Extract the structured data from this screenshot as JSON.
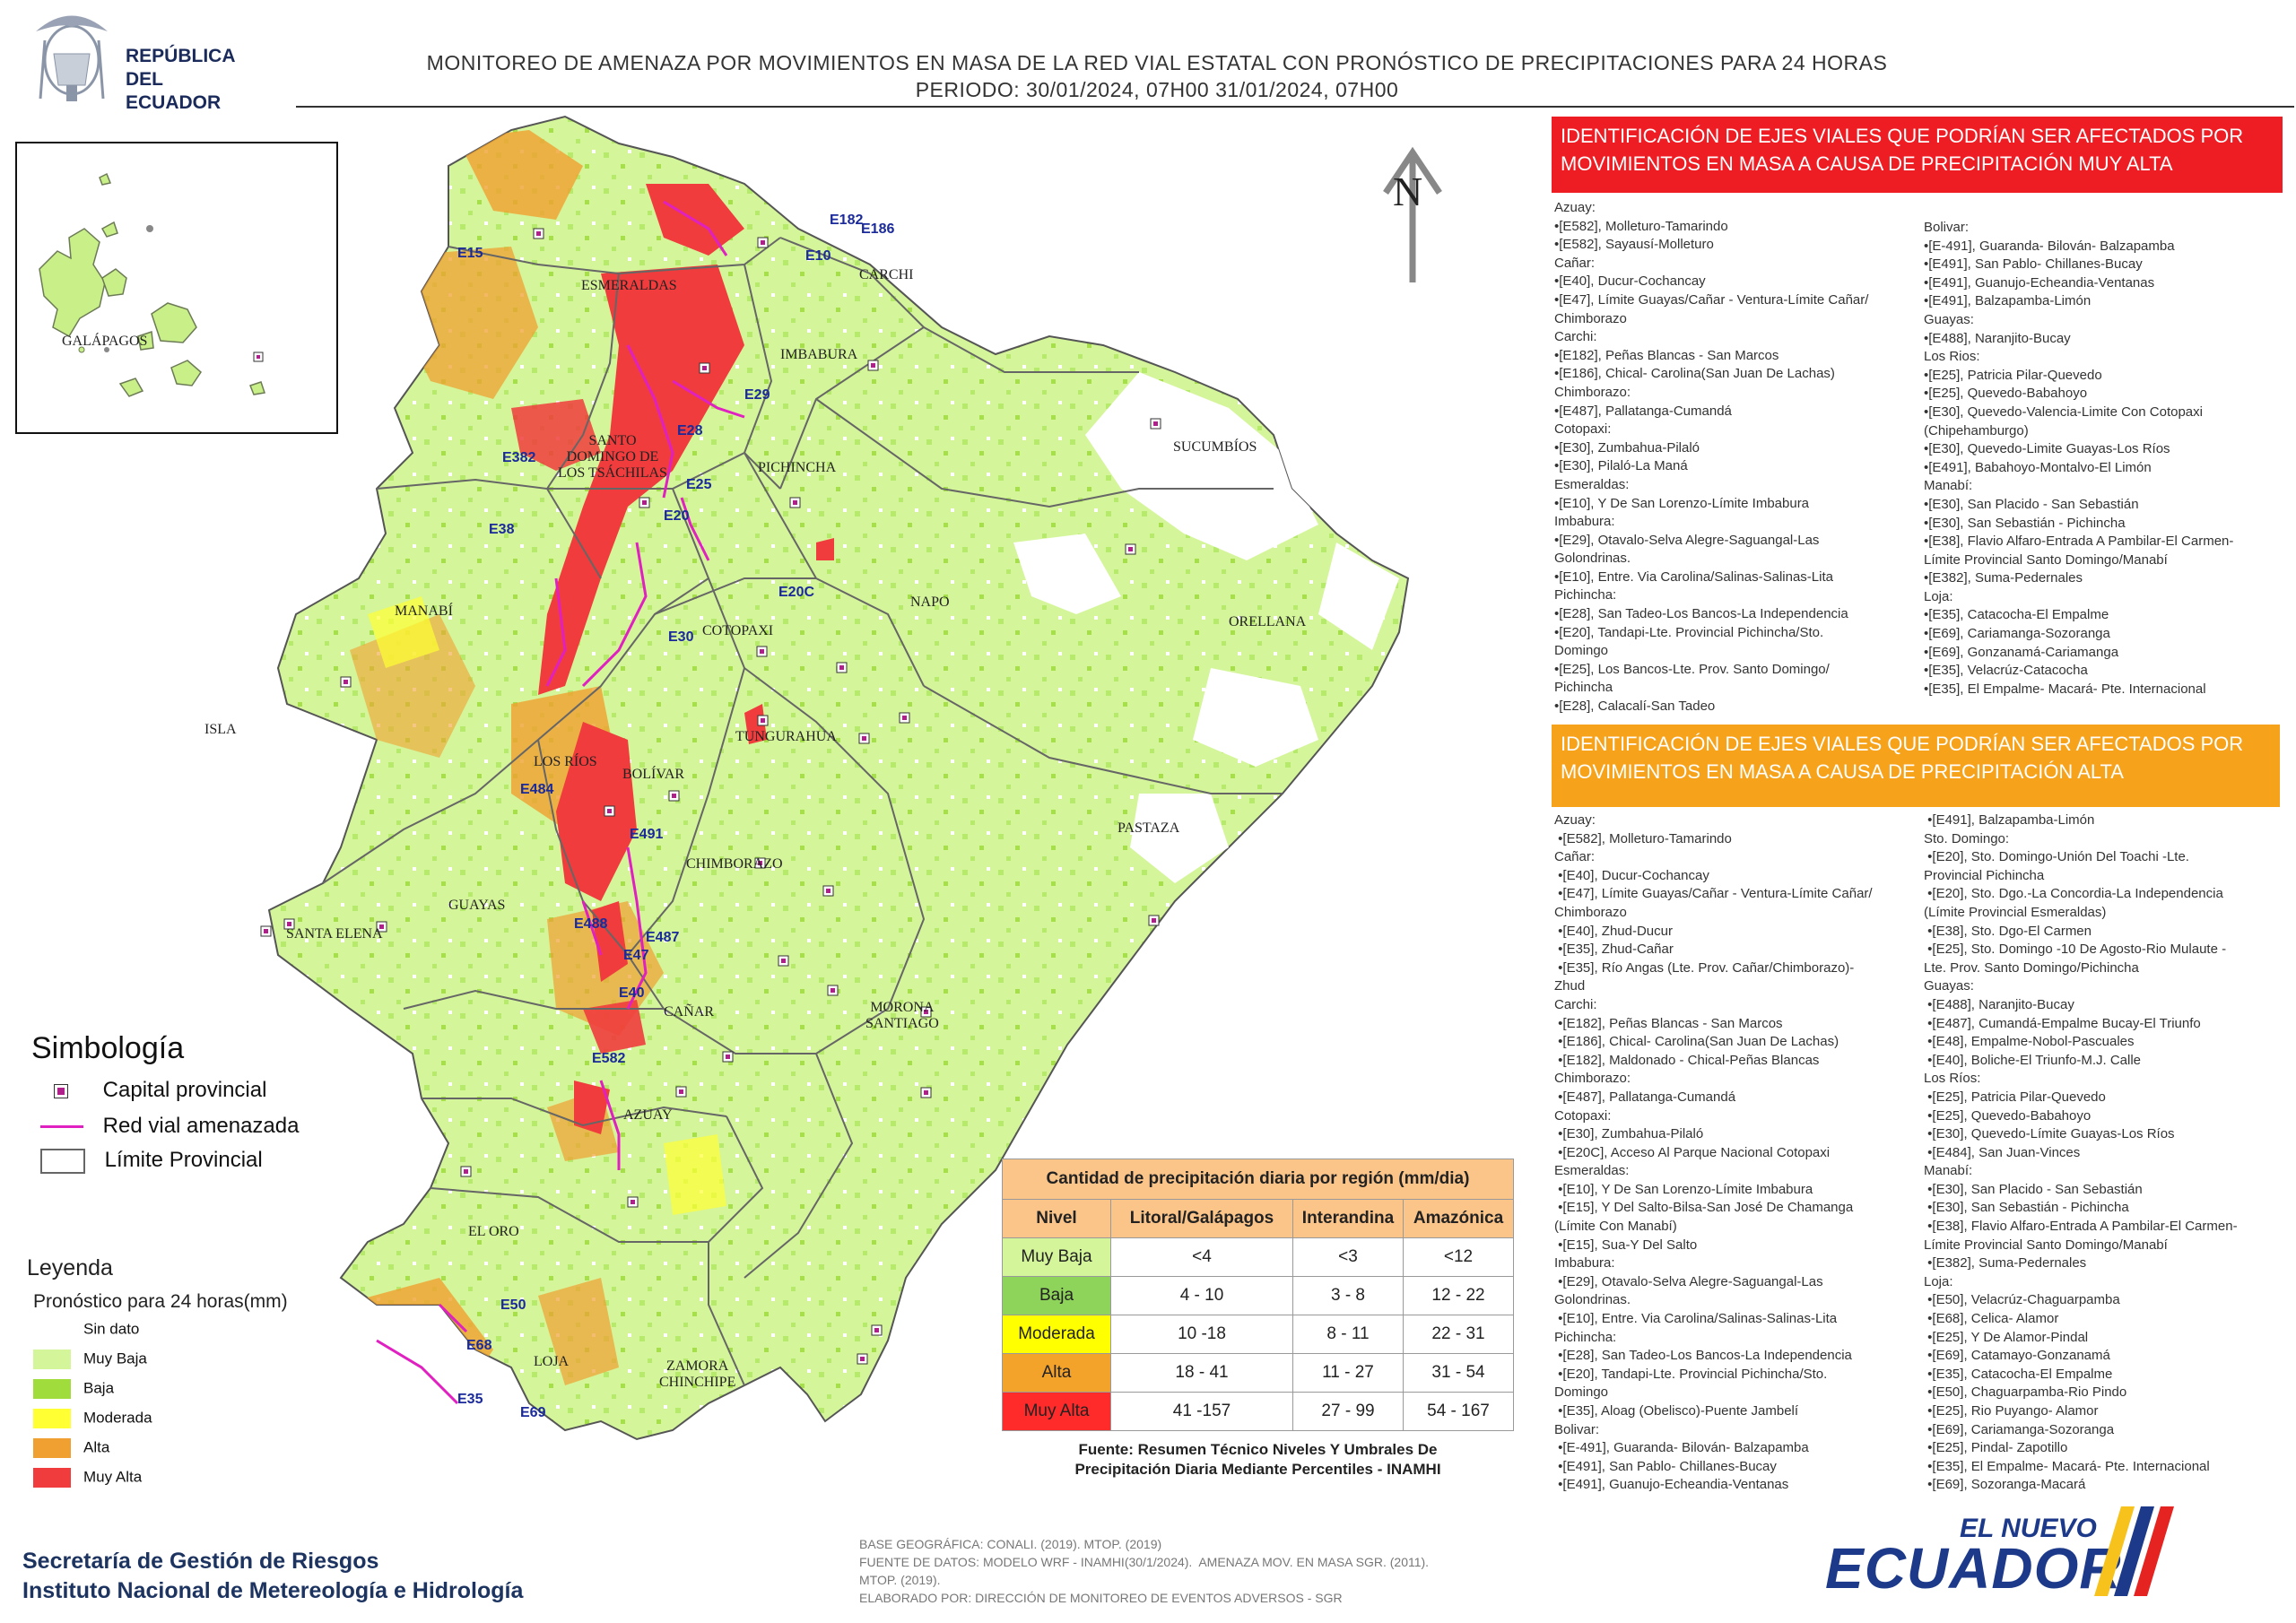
{
  "header": {
    "logo_lines": [
      "REPÚBLICA",
      "DEL ECUADOR"
    ],
    "title_line1": "MONITOREO DE AMENAZA POR MOVIMIENTOS EN MASA DE LA RED VIAL  ESTATAL  CON PRONÓSTICO  DE  PRECIPITACIONES PARA 24 HORAS",
    "title_line2": "PERIODO: 30/01/2024, 07H00 31/01/2024, 07H00"
  },
  "inset": {
    "label": "GALÁPAGOS"
  },
  "map": {
    "north_label": "N",
    "isla_label": "ISLA",
    "provinces": [
      {
        "name": "ESMERALDAS"
      },
      {
        "name": "CARCHI"
      },
      {
        "name": "IMBABURA"
      },
      {
        "name": "SUCUMBÍOS"
      },
      {
        "name": "SANTO\nDOMINGO DE\nLOS TSÁCHILAS"
      },
      {
        "name": "PICHINCHA"
      },
      {
        "name": "NAPO"
      },
      {
        "name": "ORELLANA"
      },
      {
        "name": "MANABÍ"
      },
      {
        "name": "COTOPAXI"
      },
      {
        "name": "TUNGURAHUA"
      },
      {
        "name": "LOS RÍOS"
      },
      {
        "name": "BOLÍVAR"
      },
      {
        "name": "PASTAZA"
      },
      {
        "name": "CHIMBORAZO"
      },
      {
        "name": "SANTA ELENA"
      },
      {
        "name": "GUAYAS"
      },
      {
        "name": "CAÑAR"
      },
      {
        "name": "MORONA\nSANTIAGO"
      },
      {
        "name": "AZUAY"
      },
      {
        "name": "EL ORO"
      },
      {
        "name": "LOJA"
      },
      {
        "name": "ZAMORA\nCHINCHIPE"
      }
    ],
    "roads": [
      "E15",
      "E10",
      "E182",
      "E186",
      "E29",
      "E28",
      "E382",
      "E38",
      "E25",
      "E20",
      "E20C",
      "E30",
      "E484",
      "E491",
      "E488",
      "E487",
      "E47",
      "E40",
      "E582",
      "E50",
      "E68",
      "E35",
      "E69"
    ]
  },
  "panel_muy_alta": {
    "title": "IDENTIFICACIÓN DE EJES VIALES QUE PODRÍAN SER AFECTADOS POR MOVIMIENTOS EN MASA A CAUSA DE PRECIPITACIÓN MUY ALTA",
    "col1": [
      "Azuay:",
      "•[E582], Molleturo-Tamarindo",
      "•[E582], Sayausí-Molleturo",
      "Cañar:",
      "•[E40], Ducur-Cochancay",
      "•[E47], Límite Guayas/Cañar - Ventura-Límite Cañar/",
      "Chimborazo",
      "Carchi:",
      "•[E182], Peñas Blancas - San Marcos",
      "•[E186], Chical- Carolina(San Juan De Lachas)",
      "Chimborazo:",
      "•[E487], Pallatanga-Cumandá",
      "Cotopaxi:",
      "•[E30], Zumbahua-Pilaló",
      "•[E30], Pilaló-La Maná",
      "Esmeraldas:",
      "•[E10], Y De San Lorenzo-Límite Imbabura",
      "Imbabura:",
      "•[E29], Otavalo-Selva Alegre-Saguangal-Las",
      "Golondrinas.",
      "•[E10], Entre. Via Carolina/Salinas-Salinas-Lita",
      "Pichincha:",
      "•[E28], San Tadeo-Los Bancos-La Independencia",
      "•[E20], Tandapi-Lte. Provincial Pichincha/Sto.",
      "Domingo",
      "•[E25], Los Bancos-Lte. Prov. Santo Domingo/",
      "Pichincha",
      "•[E28], Calacalí-San Tadeo"
    ],
    "col2": [
      "Bolivar:",
      "•[E-491], Guaranda- Bilován- Balzapamba",
      "•[E491], San Pablo- Chillanes-Bucay",
      "•[E491], Guanujo-Echeandia-Ventanas",
      "•[E491], Balzapamba-Limón",
      "Guayas:",
      "•[E488], Naranjito-Bucay",
      "Los Rios:",
      "•[E25], Patricia Pilar-Quevedo",
      "•[E25], Quevedo-Babahoyo",
      "•[E30], Quevedo-Valencia-Limite Con Cotopaxi",
      "(Chipehamburgo)",
      "•[E30], Quevedo-Limite Guayas-Los Ríos",
      "•[E491], Babahoyo-Montalvo-El Limón",
      "Manabí:",
      "•[E30], San Placido - San Sebastián",
      "•[E30], San Sebastián - Pichincha",
      "•[E38], Flavio Alfaro-Entrada A Pambilar-El Carmen-",
      "Límite Provincial Santo Domingo/Manabí",
      "•[E382], Suma-Pedernales",
      "Loja:",
      "•[E35], Catacocha-El Empalme",
      "•[E69], Cariamanga-Sozoranga",
      "•[E69], Gonzanamá-Cariamanga",
      "•[E35], Velacrúz-Catacocha",
      "•[E35], El Empalme- Macará- Pte. Internacional"
    ]
  },
  "panel_alta": {
    "title": "IDENTIFICACIÓN DE EJES VIALES QUE PODRÍAN SER AFECTADOS POR MOVIMIENTOS EN MASA A CAUSA DE PRECIPITACIÓN  ALTA",
    "col1": [
      "Azuay:",
      " •[E582], Molleturo-Tamarindo",
      "Cañar:",
      " •[E40], Ducur-Cochancay",
      " •[E47], Límite Guayas/Cañar - Ventura-Límite Cañar/",
      "Chimborazo",
      " •[E40], Zhud-Ducur",
      " •[E35], Zhud-Cañar",
      " •[E35], Río Angas (Lte. Prov. Cañar/Chimborazo)-",
      "Zhud",
      "Carchi:",
      " •[E182], Peñas Blancas - San Marcos",
      " •[E186], Chical- Carolina(San Juan De Lachas)",
      " •[E182], Maldonado - Chical-Peñas Blancas",
      "Chimborazo:",
      " •[E487], Pallatanga-Cumandá",
      "Cotopaxi:",
      " •[E30], Zumbahua-Pilaló",
      " •[E20C], Acceso Al Parque Nacional Cotopaxi",
      "Esmeraldas:",
      " •[E10], Y De San Lorenzo-Límite Imbabura",
      " •[E15], Y Del Salto-Bilsa-San José De Chamanga",
      "(Límite Con Manabí)",
      " •[E15], Sua-Y Del Salto",
      "Imbabura:",
      " •[E29], Otavalo-Selva Alegre-Saguangal-Las",
      "Golondrinas.",
      " •[E10], Entre. Via Carolina/Salinas-Salinas-Lita",
      "Pichincha:",
      " •[E28], San Tadeo-Los Bancos-La Independencia",
      " •[E20], Tandapi-Lte. Provincial Pichincha/Sto.",
      "Domingo",
      " •[E35], Aloag (Obelisco)-Puente Jambelí",
      "Bolivar:",
      " •[E-491], Guaranda- Bilován- Balzapamba",
      " •[E491], San Pablo- Chillanes-Bucay",
      " •[E491], Guanujo-Echeandia-Ventanas"
    ],
    "col2": [
      " •[E491], Balzapamba-Limón",
      "Sto. Domingo:",
      " •[E20], Sto. Domingo-Unión Del Toachi -Lte.",
      "Provincial Pichincha",
      " •[E20], Sto. Dgo.-La Concordia-La Independencia",
      "(Límite Provincial Esmeraldas)",
      " •[E38], Sto. Dgo-El Carmen",
      " •[E25], Sto. Domingo -10 De Agosto-Rio Mulaute -",
      "Lte. Prov. Santo Domingo/Pichincha",
      "Guayas:",
      " •[E488], Naranjito-Bucay",
      " •[E487], Cumandá-Empalme Bucay-El Triunfo",
      " •[E48], Empalme-Nobol-Pascuales",
      " •[E40], Boliche-El Triunfo-M.J. Calle",
      "Los Ríos:",
      " •[E25], Patricia Pilar-Quevedo",
      " •[E25], Quevedo-Babahoyo",
      " •[E30], Quevedo-Límite Guayas-Los Ríos",
      " •[E484], San Juan-Vinces",
      "Manabí:",
      " •[E30], San Placido - San Sebastián",
      " •[E30], San Sebastián - Pichincha",
      " •[E38], Flavio Alfaro-Entrada A Pambilar-El Carmen-",
      "Límite Provincial Santo Domingo/Manabí",
      " •[E382], Suma-Pedernales",
      "Loja:",
      " •[E50], Velacrúz-Chaguarpamba",
      " •[E68], Celica- Alamor",
      " •[E25], Y De Alamor-Pindal",
      " •[E69], Catamayo-Gonzanamá",
      " •[E35], Catacocha-El Empalme",
      " •[E50], Chaguarpamba-Rio Pindo",
      " •[E25], Rio Puyango- Alamor",
      " •[E69], Cariamanga-Sozoranga",
      " •[E25], Pindal- Zapotillo",
      " •[E35], El Empalme- Macará- Pte. Internacional",
      " •[E69], Sozoranga-Macará"
    ]
  },
  "simbologia": {
    "title": "Simbología",
    "items": [
      "Capital provincial",
      "Red vial amenazada",
      "Límite Provincial"
    ]
  },
  "leyenda": {
    "title": "Leyenda",
    "subtitle": "Pronóstico para 24 horas(mm)",
    "items": [
      {
        "label": "Sin dato",
        "color": "#ffffff"
      },
      {
        "label": "Muy Baja",
        "color": "#d4f59a"
      },
      {
        "label": "Baja",
        "color": "#9fdc3c"
      },
      {
        "label": "Moderada",
        "color": "#ffff33"
      },
      {
        "label": "Alta",
        "color": "#f0a030"
      },
      {
        "label": "Muy Alta",
        "color": "#f03c3c"
      }
    ]
  },
  "precip_table": {
    "title": "Cantidad de precipitación diaria por región (mm/dia)",
    "headers": [
      "Nivel",
      "Litoral/Galápagos",
      "Interandina",
      "Amazónica"
    ],
    "rows": [
      {
        "level": "Muy Baja",
        "color": "#d4f59a",
        "values": [
          "<4",
          "<3",
          "<12"
        ]
      },
      {
        "level": "Baja",
        "color": "#8ed35a",
        "values": [
          "4 - 10",
          "3 - 8",
          "12 - 22"
        ]
      },
      {
        "level": "Moderada",
        "color": "#ffff00",
        "values": [
          "10 -18",
          "8 - 11",
          "22 - 31"
        ]
      },
      {
        "level": "Alta",
        "color": "#f4a32a",
        "values": [
          "18 - 41",
          "11 - 27",
          "31 - 54"
        ]
      },
      {
        "level": "Muy Alta",
        "color": "#ff2a2a",
        "values": [
          "41 -157",
          "27 - 99",
          "54 - 167"
        ]
      }
    ],
    "source_line1": "Fuente: Resumen Técnico Niveles Y Umbrales De",
    "source_line2": "Precipitación Diaria Mediante Percentiles - INAMHI"
  },
  "footer": {
    "org_line1": "Secretaría de Gestión de Riesgos",
    "org_line2": "Instituto Nacional de Metereología e Hidrología",
    "credits": [
      "BASE GEOGRÁFICA: CONALI. (2019). MTOP. (2019)",
      "FUENTE DE DATOS: MODELO WRF - INAMHI(30/1/2024).  AMENAZA MOV. EN MASA SGR. (2011).",
      "MTOP. (2019).",
      "ELABORADO POR: DIRECCIÓN DE MONITOREO DE EVENTOS ADVERSOS - SGR"
    ],
    "brand_small": "EL NUEVO",
    "brand_big": "ECUADOR"
  },
  "colors": {
    "muy_baja": "#d4f59a",
    "baja": "#9fdc3c",
    "moderada": "#ffff33",
    "alta": "#f0a030",
    "muy_alta": "#f03c3c",
    "road": "#e020c0",
    "capital": "#b0208a"
  }
}
